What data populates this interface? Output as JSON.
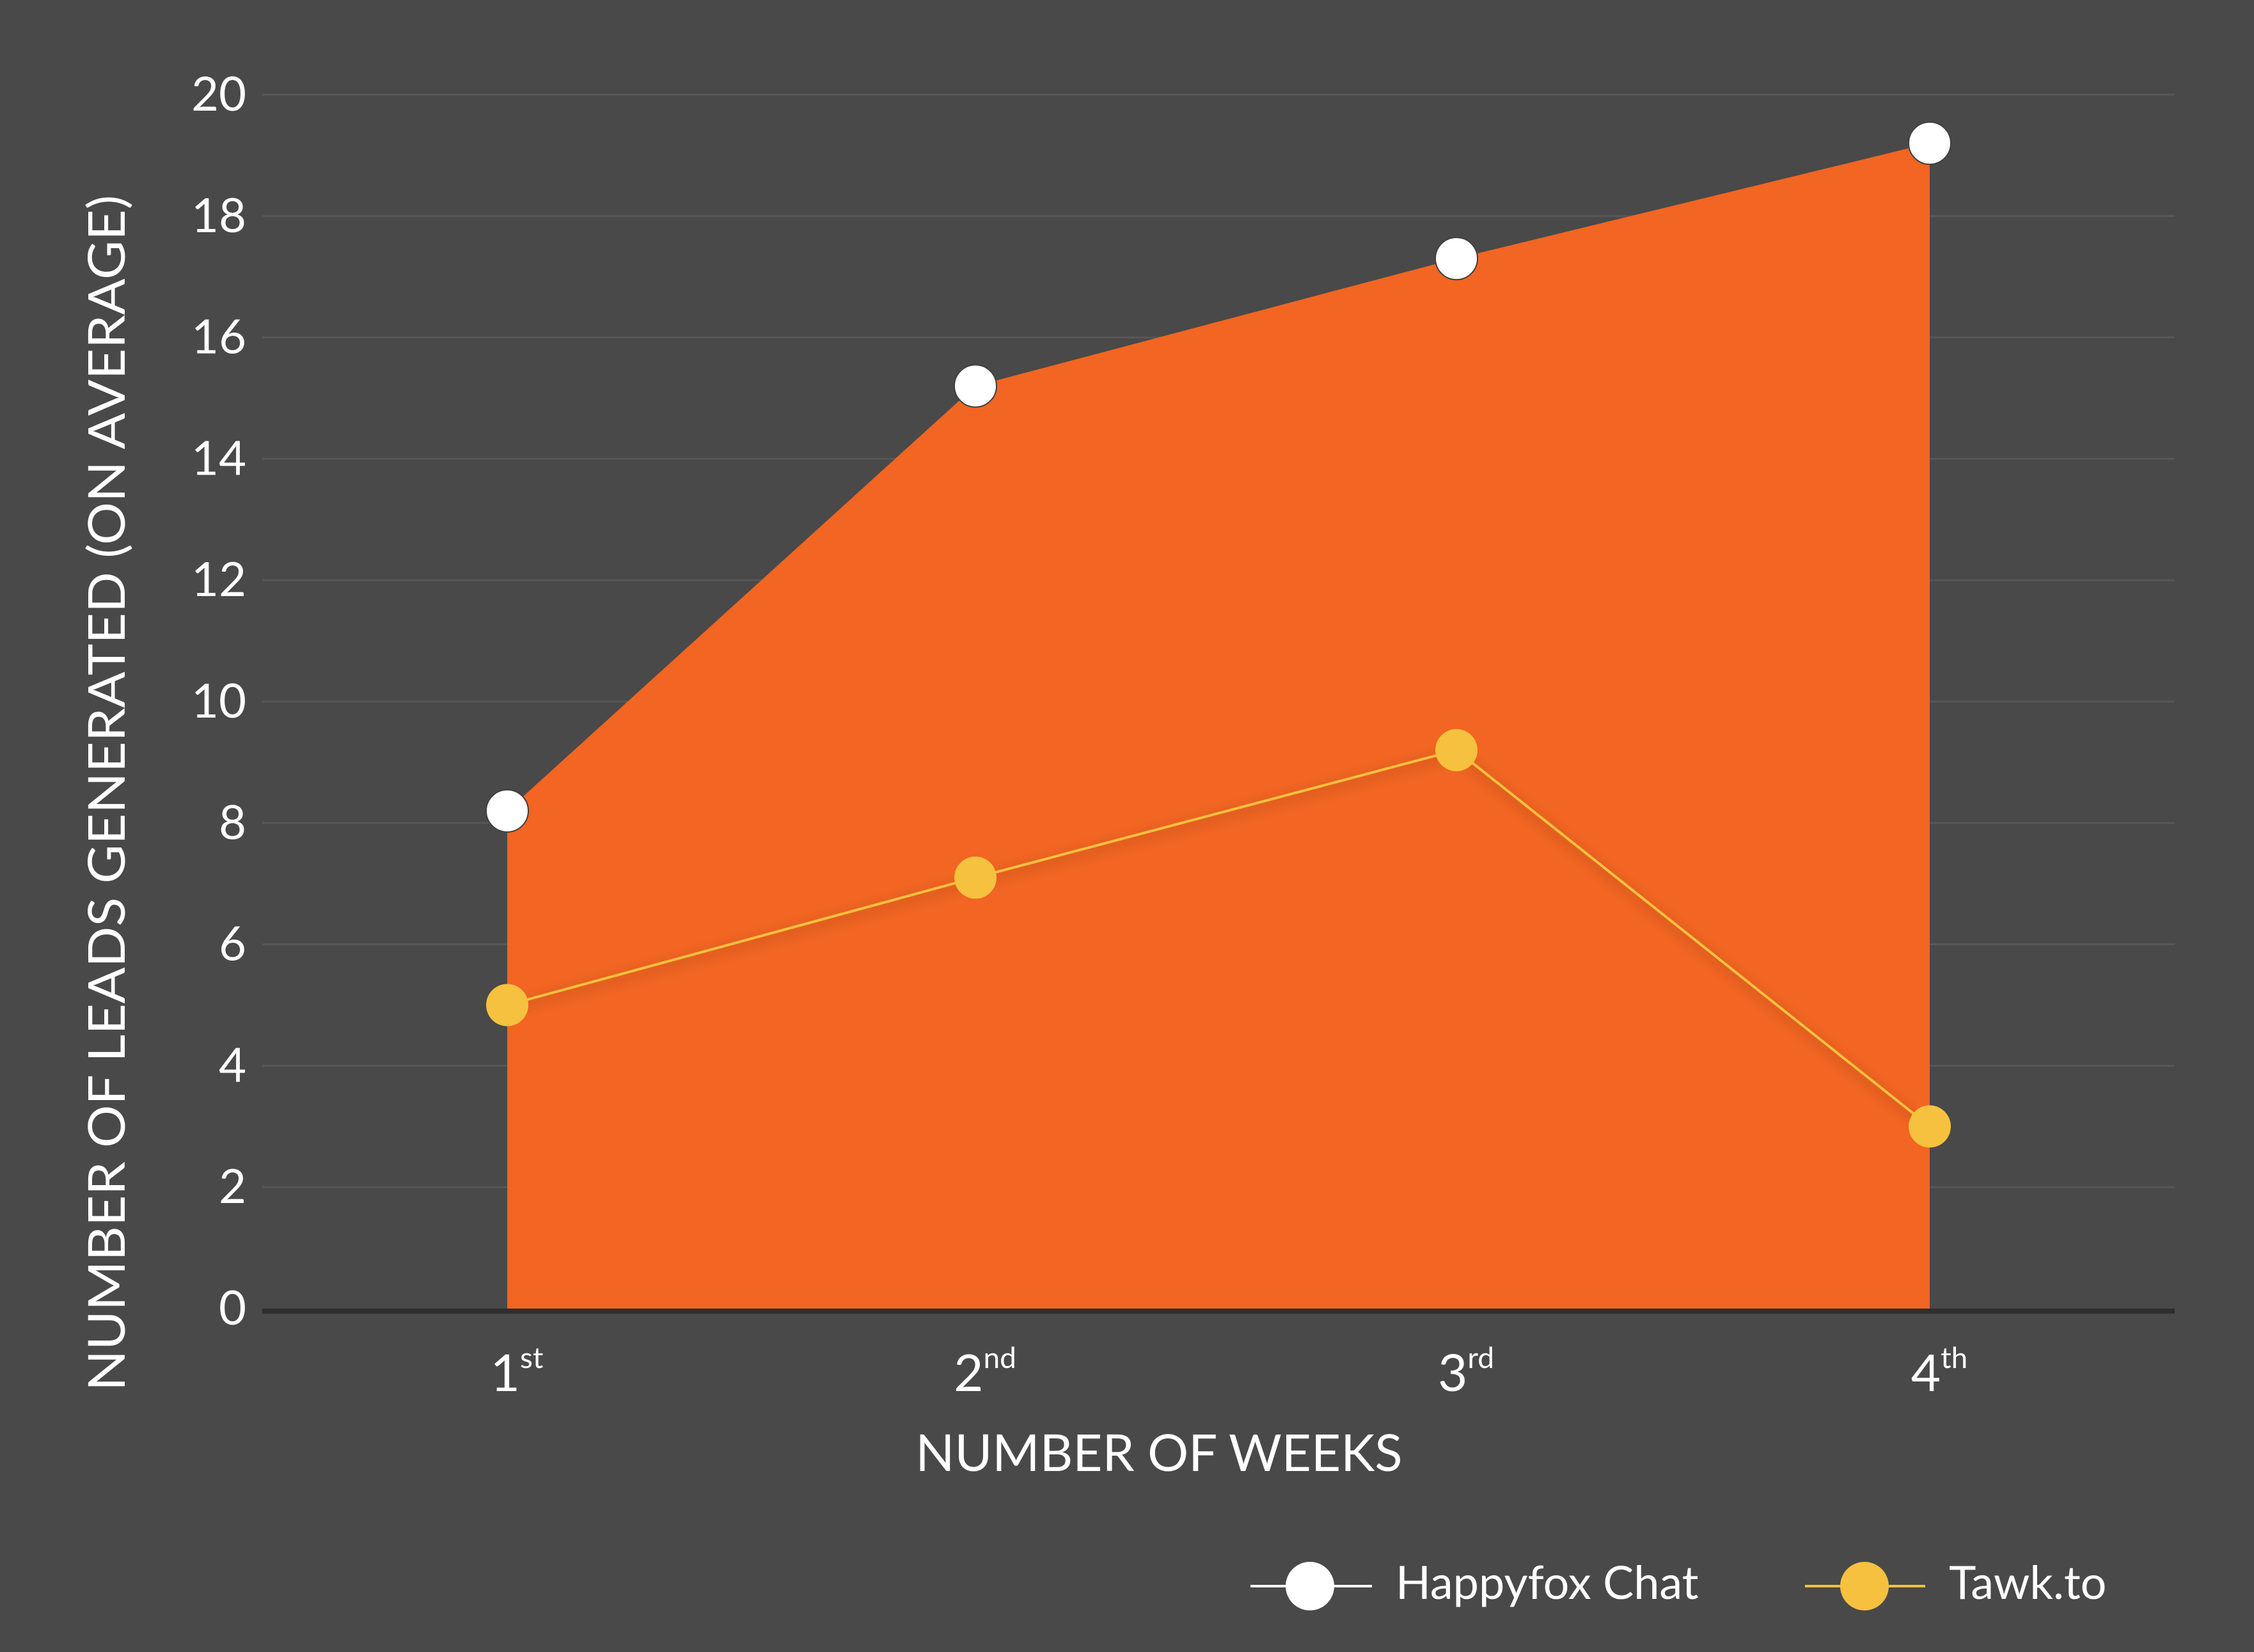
{
  "chart_data": {
    "type": "area",
    "title": "",
    "xlabel": "NUMBER OF WEEKS",
    "ylabel": "NUMBER OF LEADS GENERATED (ON AVERAGE)",
    "categories": [
      {
        "num": "1",
        "suffix": "st"
      },
      {
        "num": "2",
        "suffix": "nd"
      },
      {
        "num": "3",
        "suffix": "rd"
      },
      {
        "num": "4",
        "suffix": "th"
      }
    ],
    "ylim": [
      0,
      20
    ],
    "yticks": [
      "0",
      "2",
      "4",
      "6",
      "8",
      "10",
      "12",
      "14",
      "16",
      "18",
      "20"
    ],
    "grid": true,
    "legend_position": "bottom-right",
    "series": [
      {
        "name": "Happyfox Chat",
        "values": [
          8.2,
          15.2,
          17.3,
          19.2
        ],
        "fill_color": "#F26522",
        "marker_color": "#FFFFFF"
      },
      {
        "name": "Tawk.to",
        "values": [
          5.0,
          7.1,
          9.2,
          3.0
        ],
        "line_color": "#F5C13E",
        "marker_color": "#F5C13E"
      }
    ]
  },
  "colors": {
    "background": "#494949",
    "grid": "#575757",
    "axis": "#2E2E2E",
    "text": "#FFFFFF"
  }
}
